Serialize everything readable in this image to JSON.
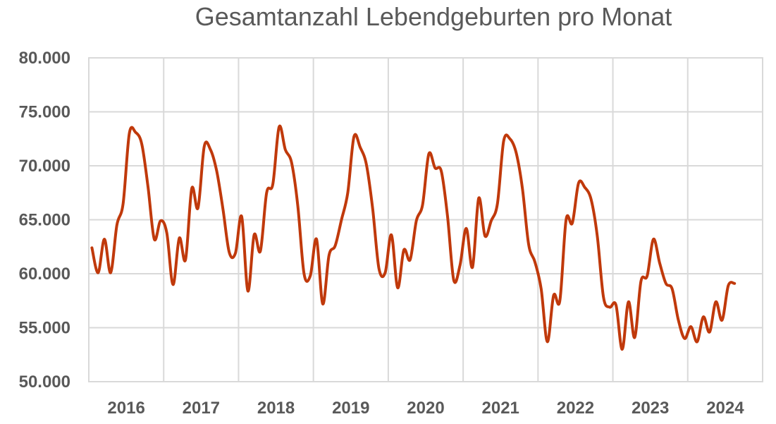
{
  "chart_data": {
    "type": "line",
    "title": "Gesamtanzahl Lebendgeburten pro Monat",
    "xlabel": "",
    "ylabel": "",
    "ylim": [
      50000,
      80000
    ],
    "y_ticks": [
      50000,
      55000,
      60000,
      65000,
      70000,
      75000,
      80000
    ],
    "y_tick_labels": [
      "50.000",
      "55.000",
      "60.000",
      "65.000",
      "70.000",
      "75.000",
      "80.000"
    ],
    "x_tick_labels": [
      "2016",
      "2017",
      "2018",
      "2019",
      "2020",
      "2021",
      "2022",
      "2023",
      "2024"
    ],
    "grid": true,
    "legend": "none",
    "colors": {
      "line": "#c0390b",
      "grid": "#d9d9d9",
      "text": "#595959"
    },
    "series": [
      {
        "start": "2016-01",
        "values": [
          62400,
          60100,
          63200,
          60100,
          64500,
          66500,
          73000,
          73100,
          72000,
          68000,
          63200,
          64900,
          63800,
          59000,
          63300,
          61300,
          67900,
          66100,
          71800,
          71500,
          69500,
          66000,
          62000,
          61900,
          65300,
          58400,
          63600,
          62100,
          67500,
          68300,
          73600,
          71500,
          70300,
          66300,
          60000,
          59800,
          63200,
          57200,
          61700,
          62600,
          65000,
          67500,
          72700,
          71700,
          70100,
          66000,
          60500,
          60100,
          63600,
          58700,
          62200,
          61300,
          64900,
          66400,
          71100,
          69800,
          69500,
          65300,
          59400,
          60800,
          64200,
          60600,
          67000,
          63500,
          64900,
          66500,
          72300,
          72500,
          71200,
          67900,
          62700,
          61100,
          58600,
          53700,
          58000,
          57500,
          65000,
          64700,
          68400,
          68000,
          66900,
          63500,
          57800,
          56900,
          57100,
          53000,
          57400,
          54100,
          59300,
          59800,
          63200,
          61000,
          59100,
          58600,
          55700,
          54000,
          55100,
          53700,
          56000,
          54600,
          57400,
          55700,
          58900,
          59100
        ]
      }
    ]
  }
}
